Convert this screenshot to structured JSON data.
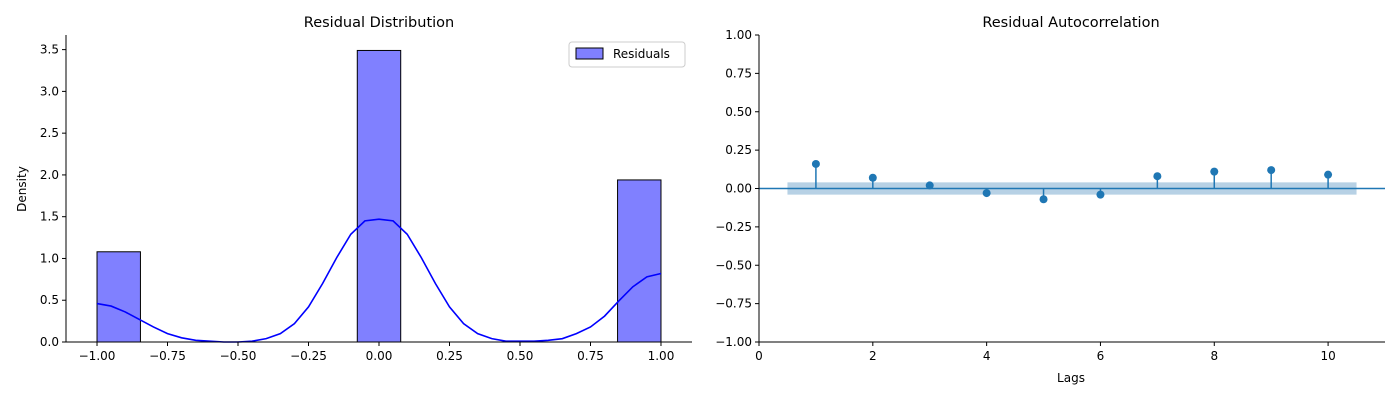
{
  "chart_data": [
    {
      "type": "bar",
      "title": "Residual Distribution",
      "xlabel": "",
      "ylabel": "Density",
      "xlim": [
        -1.11,
        1.11
      ],
      "ylim": [
        0,
        3.675
      ],
      "xticks": [
        -1.0,
        -0.75,
        -0.5,
        -0.25,
        0.0,
        0.25,
        0.5,
        0.75,
        1.0
      ],
      "xtick_labels": [
        "−1.00",
        "−0.75",
        "−0.50",
        "−0.25",
        "0.00",
        "0.25",
        "0.50",
        "0.75",
        "1.00"
      ],
      "yticks": [
        0.0,
        0.5,
        1.0,
        1.5,
        2.0,
        2.5,
        3.0,
        3.5
      ],
      "ytick_labels": [
        "0.0",
        "0.5",
        "1.0",
        "1.5",
        "2.0",
        "2.5",
        "3.0",
        "3.5"
      ],
      "legend": {
        "label": "Residuals",
        "position": "upper-right"
      },
      "bar_color": "#8080ff",
      "edge_color": "#000000",
      "kde_color": "#0000ff",
      "bins": [
        {
          "x0": -1.0,
          "x1": -0.846,
          "density": 1.08
        },
        {
          "x0": -0.077,
          "x1": 0.077,
          "density": 3.49
        },
        {
          "x0": 0.846,
          "x1": 1.0,
          "density": 1.94
        }
      ],
      "kde_curve": {
        "x": [
          -1.0,
          -0.95,
          -0.9,
          -0.85,
          -0.8,
          -0.75,
          -0.7,
          -0.65,
          -0.6,
          -0.55,
          -0.5,
          -0.45,
          -0.4,
          -0.35,
          -0.3,
          -0.25,
          -0.2,
          -0.15,
          -0.1,
          -0.05,
          0.0,
          0.05,
          0.1,
          0.15,
          0.2,
          0.25,
          0.3,
          0.35,
          0.4,
          0.45,
          0.5,
          0.55,
          0.6,
          0.65,
          0.7,
          0.75,
          0.8,
          0.85,
          0.9,
          0.95,
          1.0
        ],
        "y": [
          0.46,
          0.43,
          0.36,
          0.27,
          0.18,
          0.1,
          0.05,
          0.02,
          0.01,
          0.0,
          0.0,
          0.01,
          0.04,
          0.1,
          0.22,
          0.42,
          0.7,
          1.01,
          1.29,
          1.45,
          1.47,
          1.45,
          1.29,
          1.01,
          0.7,
          0.42,
          0.22,
          0.1,
          0.04,
          0.01,
          0.01,
          0.01,
          0.02,
          0.04,
          0.1,
          0.18,
          0.31,
          0.49,
          0.66,
          0.78,
          0.82
        ]
      }
    },
    {
      "type": "stem",
      "title": "Residual Autocorrelation",
      "xlabel": "Lags",
      "ylabel": "",
      "xlim": [
        0,
        11
      ],
      "ylim": [
        -1.0,
        1.0
      ],
      "xticks": [
        0,
        2,
        4,
        6,
        8,
        10
      ],
      "xtick_labels": [
        "0",
        "2",
        "4",
        "6",
        "8",
        "10"
      ],
      "yticks": [
        -1.0,
        -0.75,
        -0.5,
        -0.25,
        0.0,
        0.25,
        0.5,
        0.75,
        1.0
      ],
      "ytick_labels": [
        "−1.00",
        "−0.75",
        "−0.50",
        "−0.25",
        "0.00",
        "0.25",
        "0.50",
        "0.75",
        "1.00"
      ],
      "lags": [
        1,
        2,
        3,
        4,
        5,
        6,
        7,
        8,
        9,
        10
      ],
      "values": [
        0.16,
        0.07,
        0.02,
        -0.03,
        -0.07,
        -0.04,
        0.08,
        0.11,
        0.12,
        0.09
      ],
      "confidence_band": {
        "x": [
          0.5,
          10.5
        ],
        "y": [
          -0.04,
          0.04
        ]
      },
      "color": "#1f77b4",
      "band_color": "#aac9e1"
    }
  ]
}
